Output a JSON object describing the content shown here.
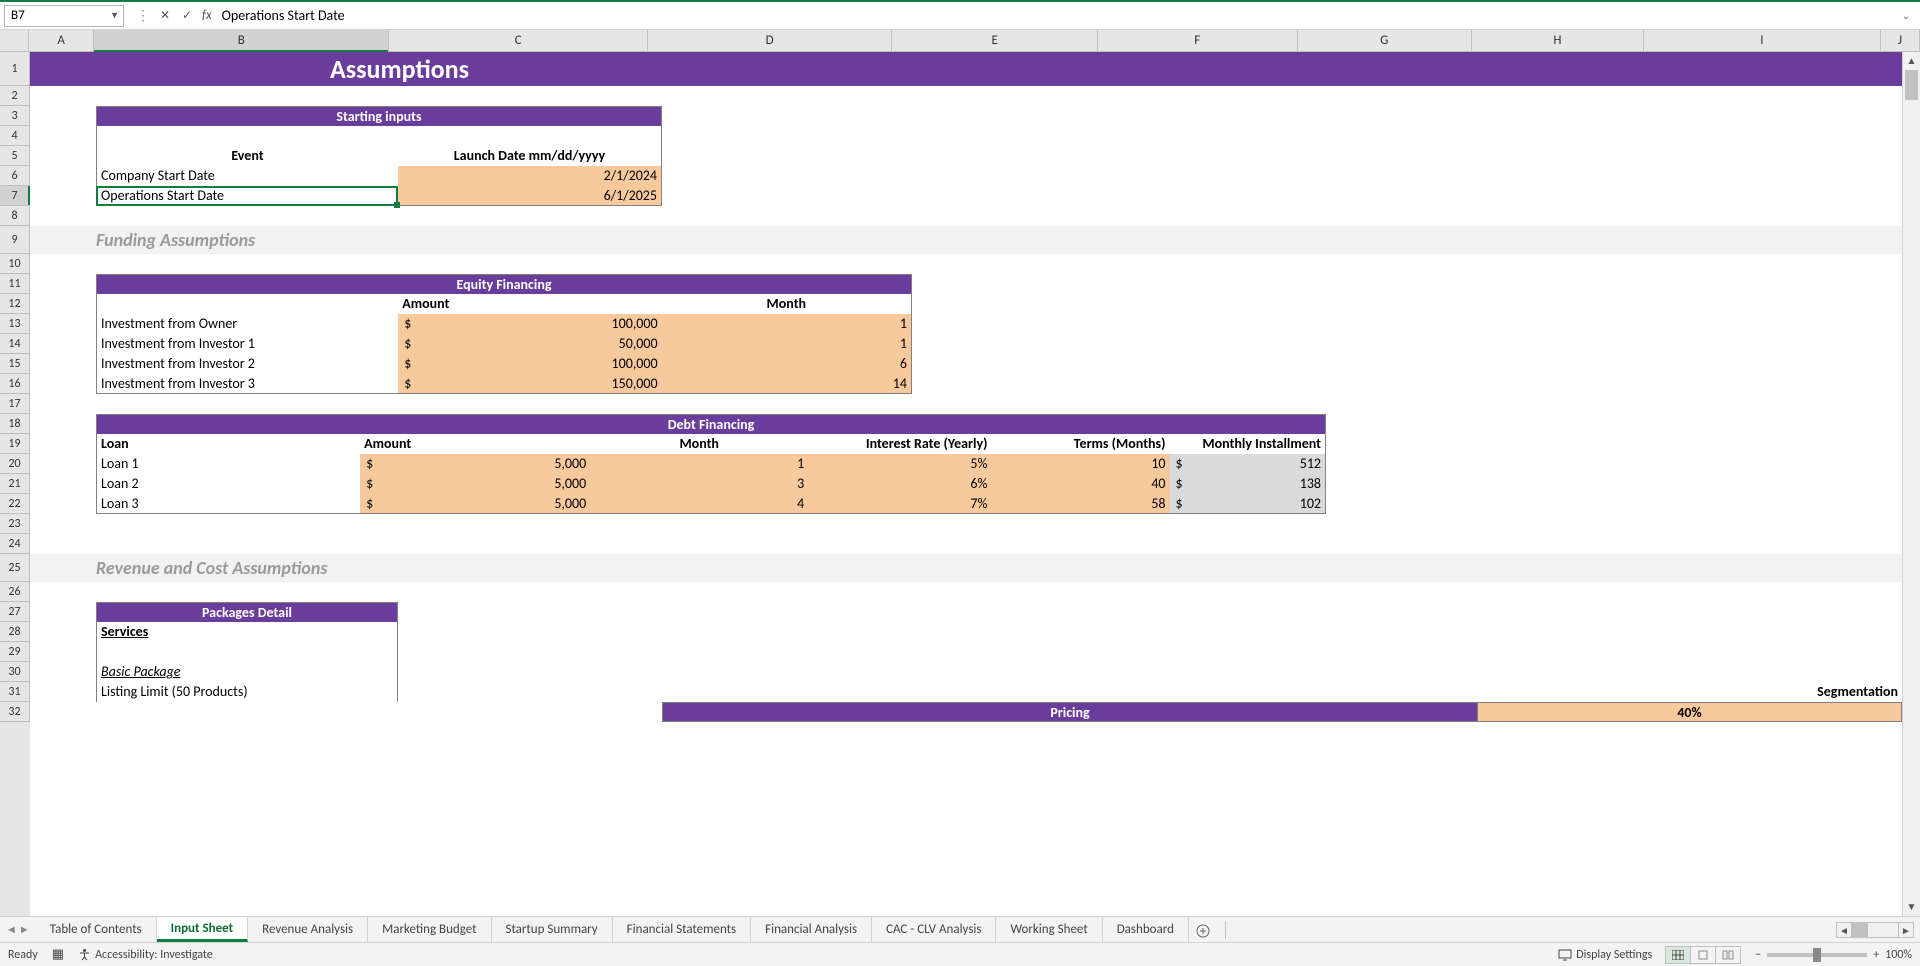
{
  "nameBox": "B7",
  "formulaBar": "Operations Start Date",
  "columns": [
    "A",
    "B",
    "C",
    "D",
    "E",
    "F",
    "G",
    "H",
    "I",
    "J"
  ],
  "selectedCol": "B",
  "selectedRow": 7,
  "colors": {
    "purple": "#6a3d9c",
    "peach": "#f8c99c",
    "grayCalc": "#dadada",
    "selection": "#107c41",
    "section": "#f2f2f2"
  },
  "title": "Assumptions",
  "startingInputs": {
    "header": "Starting inputs",
    "cols": [
      "Event",
      "Launch Date mm/dd/yyyy"
    ],
    "rows": [
      {
        "label": "Company Start Date",
        "value": "2/1/2024"
      },
      {
        "label": "Operations Start Date",
        "value": "6/1/2025"
      }
    ]
  },
  "sections": {
    "funding": "Funding Assumptions",
    "revenue": "Revenue and Cost Assumptions"
  },
  "equity": {
    "header": "Equity Financing",
    "cols": [
      "Amount",
      "Month"
    ],
    "rows": [
      {
        "label": "Investment from Owner",
        "amount": "100,000",
        "month": "1"
      },
      {
        "label": "Investment from Investor 1",
        "amount": "50,000",
        "month": "1"
      },
      {
        "label": "Investment from Investor 2",
        "amount": "100,000",
        "month": "6"
      },
      {
        "label": "Investment from Investor 3",
        "amount": "150,000",
        "month": "14"
      }
    ]
  },
  "debt": {
    "header": "Debt Financing",
    "cols": [
      "Loan",
      "Amount",
      "Month",
      "Interest Rate (Yearly)",
      "Terms (Months)",
      "Monthly Installment"
    ],
    "rows": [
      {
        "label": "Loan 1",
        "amount": "5,000",
        "month": "1",
        "rate": "5%",
        "terms": "10",
        "installment": "512"
      },
      {
        "label": "Loan 2",
        "amount": "5,000",
        "month": "3",
        "rate": "6%",
        "terms": "40",
        "installment": "138"
      },
      {
        "label": "Loan 3",
        "amount": "5,000",
        "month": "4",
        "rate": "7%",
        "terms": "58",
        "installment": "102"
      }
    ]
  },
  "packages": {
    "header": "Packages Detail",
    "servicesLabel": "Services",
    "basicPackage": "Basic Package",
    "listing": "Listing Limit (50 Products)",
    "segmentation": "Segmentation",
    "pricing": "Pricing",
    "segValue": "40%"
  },
  "tabs": [
    "Table of Contents",
    "Input Sheet",
    "Revenue Analysis",
    "Marketing Budget",
    "Startup Summary",
    "Financial Statements",
    "Financial Analysis",
    "CAC - CLV Analysis",
    "Working Sheet",
    "Dashboard"
  ],
  "activeTab": "Input Sheet",
  "status": {
    "ready": "Ready",
    "accessibility": "Accessibility: Investigate",
    "displaySettings": "Display Settings",
    "zoom": "100%"
  }
}
